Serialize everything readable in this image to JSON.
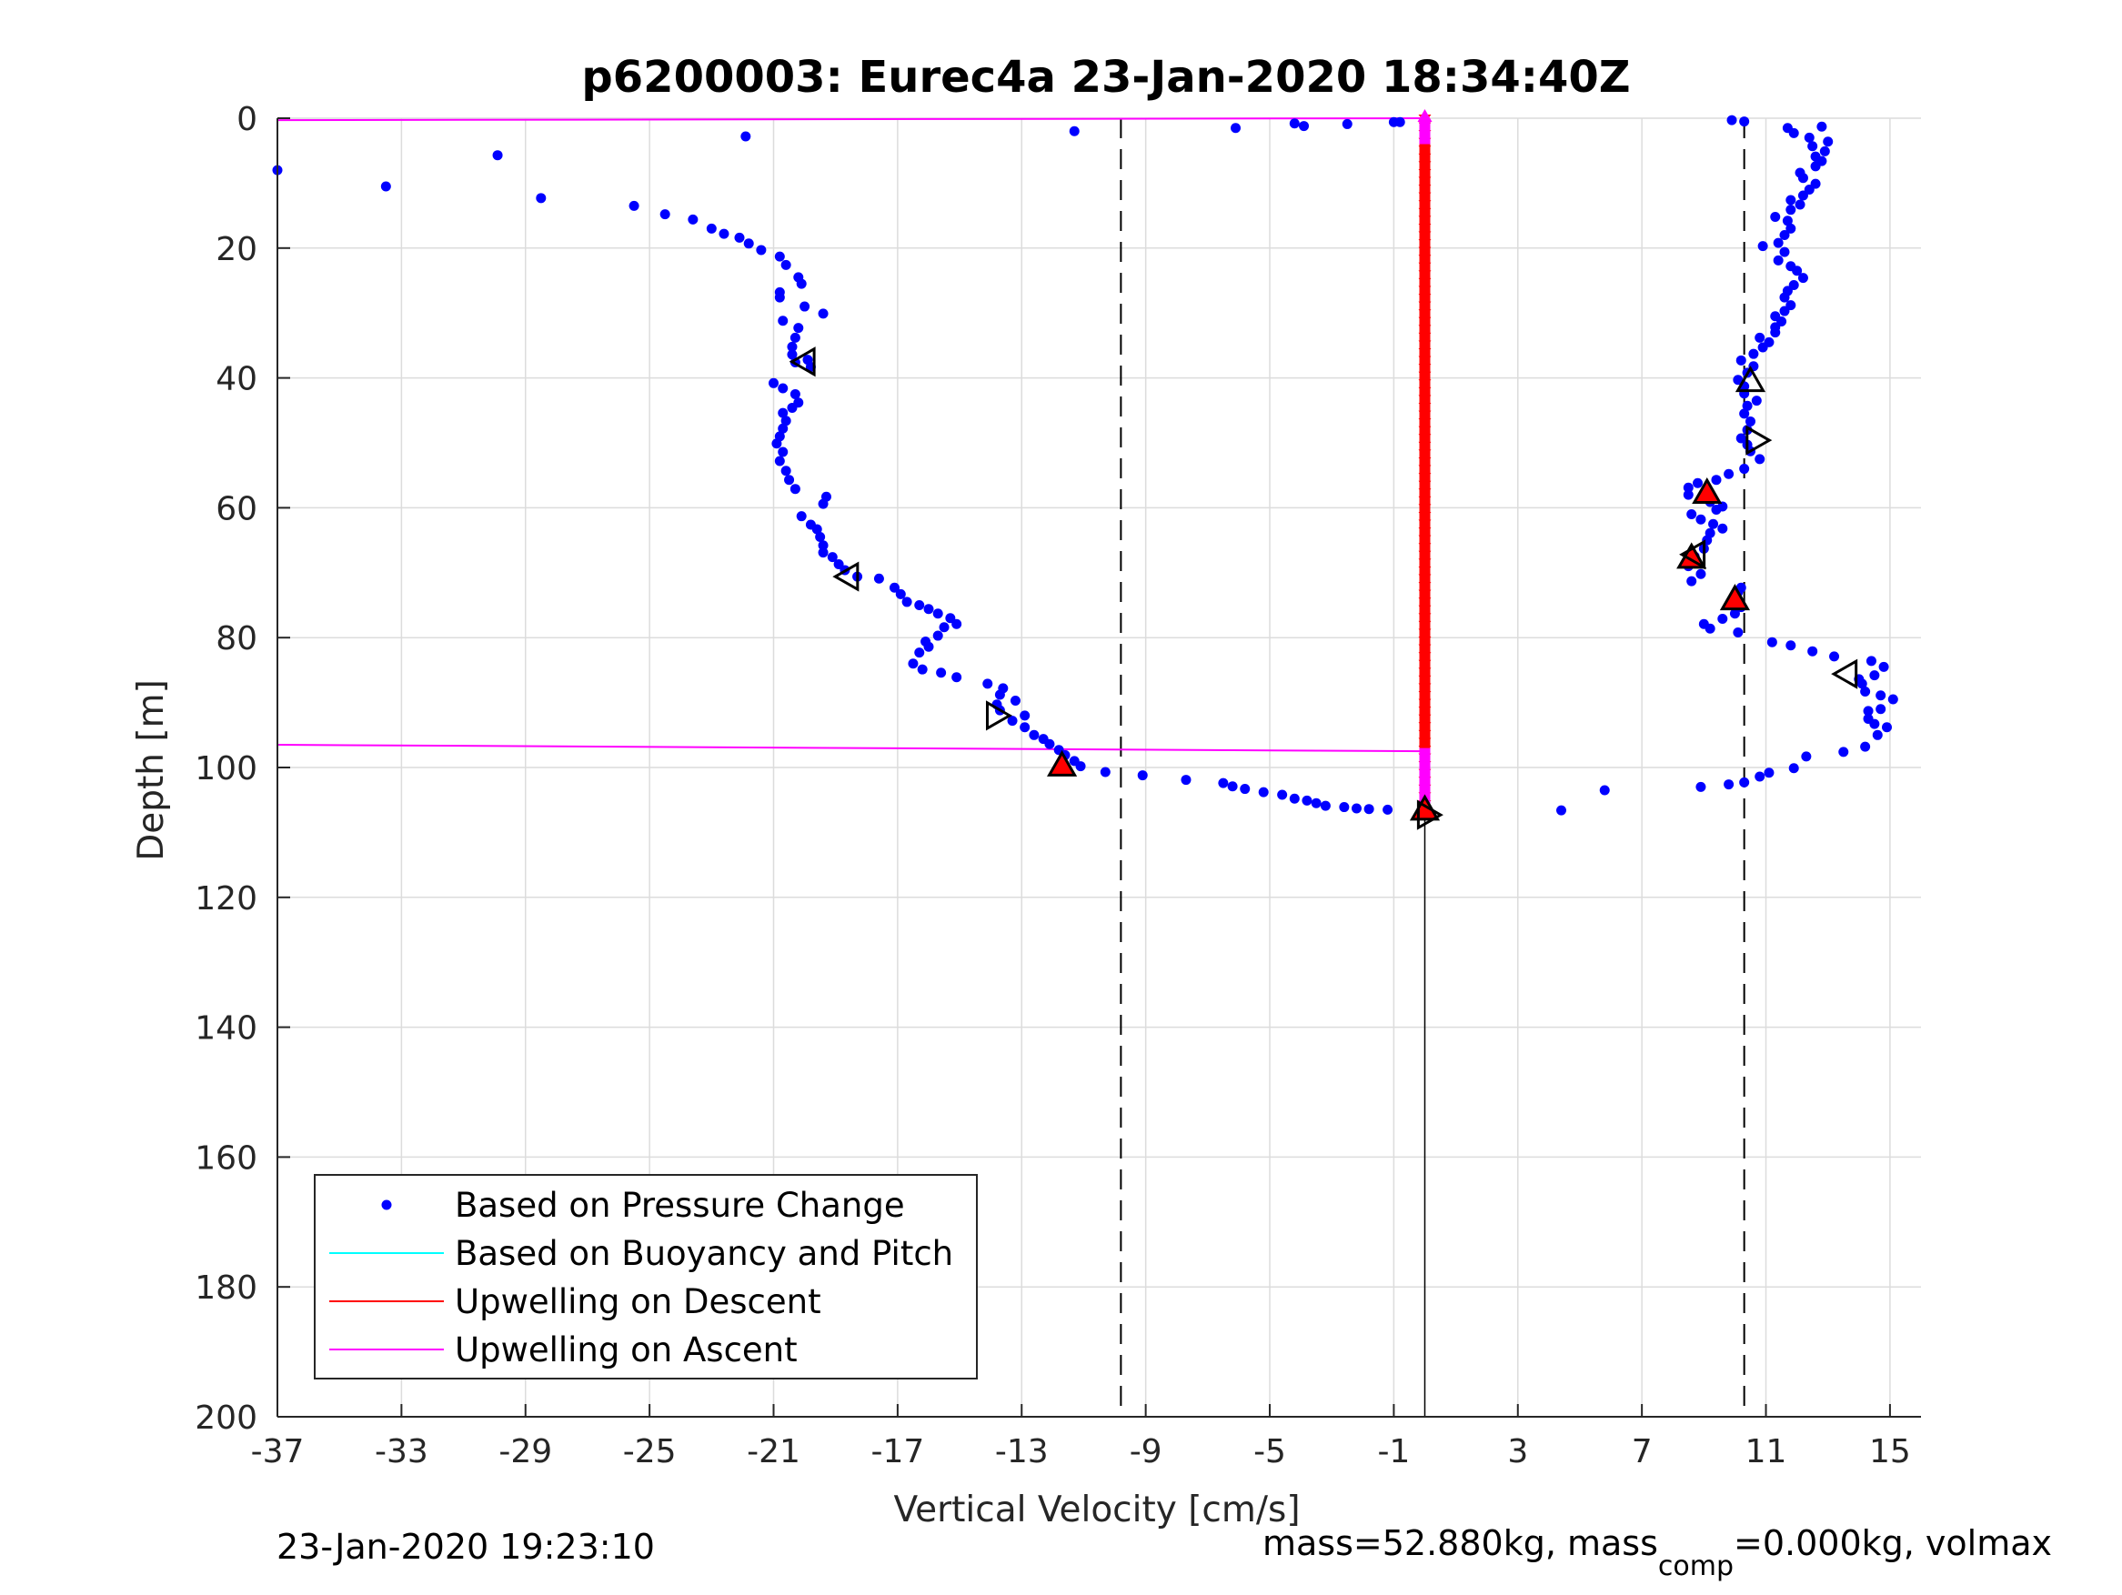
{
  "figure": {
    "title": "p6200003: Eurec4a 23-Jan-2020 18:34:40Z",
    "footer_left": "23-Jan-2020 19:23:10",
    "footer_right": {
      "part1": "mass=52.880kg, mass",
      "sub": "comp",
      "part2": "=0.000kg, volmax"
    }
  },
  "chart_data": {
    "type": "scatter",
    "title": "p6200003: Eurec4a 23-Jan-2020 18:34:40Z",
    "xlabel": "Vertical Velocity [cm/s]",
    "ylabel": "Depth [m]",
    "xlim": [
      -37,
      16
    ],
    "ylim": [
      0,
      200
    ],
    "y_reversed": true,
    "grid": true,
    "legend_position": "bottom-left",
    "xticks": [
      -37,
      -33,
      -29,
      -25,
      -21,
      -17,
      -13,
      -9,
      -5,
      -1,
      3,
      7,
      11,
      15
    ],
    "yticks": [
      0,
      20,
      40,
      60,
      80,
      100,
      120,
      140,
      160,
      180,
      200
    ],
    "colors": {
      "pressure": "#0000ff",
      "buoyancy": "#00ffff",
      "descent": "#ff0000",
      "ascent": "#ff00ff",
      "marker_fill": "#ff0000"
    },
    "legend": [
      {
        "label": "Based on Pressure Change",
        "style": "dot",
        "color": "#0000ff"
      },
      {
        "label": "Based on Buoyancy and Pitch",
        "style": "line",
        "color": "#00ffff"
      },
      {
        "label": "Upwelling on Descent",
        "style": "line",
        "color": "#ff0000"
      },
      {
        "label": "Upwelling on Ascent",
        "style": "line",
        "color": "#ff00ff"
      }
    ],
    "dashed_lines_x": [
      -9.8,
      10.3
    ],
    "zero_line_x": 0,
    "series": [
      {
        "name": "Based on Pressure Change",
        "kind": "dots",
        "points": [
          [
            -37.0,
            8.0
          ],
          [
            -33.5,
            10.5
          ],
          [
            -29.9,
            5.7
          ],
          [
            -28.5,
            12.3
          ],
          [
            -21.9,
            2.8
          ],
          [
            -11.3,
            2.0
          ],
          [
            -25.5,
            13.5
          ],
          [
            -24.5,
            14.8
          ],
          [
            -23.6,
            15.6
          ],
          [
            -23.0,
            17.0
          ],
          [
            -22.6,
            17.8
          ],
          [
            -22.1,
            18.4
          ],
          [
            -21.8,
            19.3
          ],
          [
            -21.4,
            20.3
          ],
          [
            -20.8,
            21.3
          ],
          [
            -20.6,
            22.6
          ],
          [
            -20.2,
            24.5
          ],
          [
            -20.1,
            25.5
          ],
          [
            -20.8,
            26.8
          ],
          [
            -20.8,
            27.6
          ],
          [
            -20.0,
            29.0
          ],
          [
            -19.4,
            30.1
          ],
          [
            -20.7,
            31.2
          ],
          [
            -20.2,
            32.3
          ],
          [
            -20.3,
            33.8
          ],
          [
            -20.4,
            35.2
          ],
          [
            -20.4,
            36.4
          ],
          [
            -19.9,
            37.2
          ],
          [
            -20.3,
            37.6
          ],
          [
            -19.8,
            38.3
          ],
          [
            -21.0,
            40.8
          ],
          [
            -20.7,
            41.6
          ],
          [
            -20.3,
            42.5
          ],
          [
            -20.2,
            43.8
          ],
          [
            -20.4,
            44.6
          ],
          [
            -20.7,
            45.4
          ],
          [
            -20.6,
            46.6
          ],
          [
            -20.7,
            47.8
          ],
          [
            -20.8,
            49.0
          ],
          [
            -20.9,
            50.1
          ],
          [
            -20.7,
            51.4
          ],
          [
            -20.8,
            52.8
          ],
          [
            -20.6,
            54.3
          ],
          [
            -20.5,
            55.7
          ],
          [
            -20.3,
            57.1
          ],
          [
            -19.3,
            58.3
          ],
          [
            -19.4,
            59.4
          ],
          [
            -20.1,
            61.3
          ],
          [
            -19.8,
            62.6
          ],
          [
            -19.6,
            63.3
          ],
          [
            -19.5,
            64.5
          ],
          [
            -19.4,
            65.8
          ],
          [
            -19.4,
            66.9
          ],
          [
            -19.1,
            67.6
          ],
          [
            -18.9,
            68.7
          ],
          [
            -18.7,
            69.6
          ],
          [
            -18.3,
            70.6
          ],
          [
            -17.6,
            70.9
          ],
          [
            -17.1,
            72.3
          ],
          [
            -16.9,
            73.3
          ],
          [
            -16.7,
            74.5
          ],
          [
            -16.3,
            75.0
          ],
          [
            -16.0,
            75.6
          ],
          [
            -15.7,
            76.3
          ],
          [
            -15.3,
            77.0
          ],
          [
            -15.1,
            77.9
          ],
          [
            -15.5,
            78.4
          ],
          [
            -15.7,
            79.7
          ],
          [
            -16.1,
            80.6
          ],
          [
            -16.0,
            81.4
          ],
          [
            -16.3,
            82.3
          ],
          [
            -16.5,
            84.0
          ],
          [
            -16.2,
            84.9
          ],
          [
            -15.6,
            85.4
          ],
          [
            -15.1,
            86.1
          ],
          [
            -14.1,
            87.1
          ],
          [
            -13.6,
            87.8
          ],
          [
            -13.7,
            88.8
          ],
          [
            -13.2,
            89.7
          ],
          [
            -13.8,
            90.3
          ],
          [
            -13.7,
            91.2
          ],
          [
            -12.9,
            92.0
          ],
          [
            -13.3,
            92.8
          ],
          [
            -12.9,
            93.8
          ],
          [
            -12.6,
            95.0
          ],
          [
            -12.3,
            95.6
          ],
          [
            -12.1,
            96.4
          ],
          [
            -11.8,
            97.3
          ],
          [
            -11.6,
            98.1
          ],
          [
            -11.3,
            99.0
          ],
          [
            -11.1,
            99.8
          ],
          [
            -10.3,
            100.7
          ],
          [
            -9.1,
            101.2
          ],
          [
            -7.7,
            101.9
          ],
          [
            -6.5,
            102.4
          ],
          [
            -6.2,
            102.9
          ],
          [
            -5.8,
            103.3
          ],
          [
            -5.2,
            103.8
          ],
          [
            -4.6,
            104.2
          ],
          [
            -4.2,
            104.8
          ],
          [
            -3.8,
            105.1
          ],
          [
            -3.5,
            105.5
          ],
          [
            -3.2,
            105.9
          ],
          [
            -2.6,
            106.1
          ],
          [
            -2.2,
            106.3
          ],
          [
            -1.8,
            106.4
          ],
          [
            -1.2,
            106.5
          ],
          [
            -6.1,
            1.5
          ],
          [
            -4.2,
            0.8
          ],
          [
            -3.9,
            1.2
          ],
          [
            -2.5,
            0.9
          ],
          [
            -1.0,
            0.6
          ],
          [
            -0.8,
            0.6
          ],
          [
            4.4,
            106.6
          ],
          [
            5.8,
            103.5
          ],
          [
            8.9,
            103.0
          ],
          [
            9.8,
            102.6
          ],
          [
            10.3,
            102.3
          ],
          [
            10.8,
            101.4
          ],
          [
            11.1,
            100.8
          ],
          [
            11.9,
            100.1
          ],
          [
            12.3,
            98.3
          ],
          [
            13.5,
            97.6
          ],
          [
            14.2,
            96.8
          ],
          [
            14.6,
            95.0
          ],
          [
            14.5,
            93.3
          ],
          [
            14.9,
            93.8
          ],
          [
            14.3,
            92.5
          ],
          [
            14.7,
            91.0
          ],
          [
            14.3,
            91.3
          ],
          [
            15.1,
            89.5
          ],
          [
            14.7,
            88.9
          ],
          [
            14.2,
            88.3
          ],
          [
            14.1,
            87.1
          ],
          [
            14.0,
            86.4
          ],
          [
            14.5,
            85.8
          ],
          [
            14.8,
            84.5
          ],
          [
            14.4,
            83.6
          ],
          [
            13.2,
            82.9
          ],
          [
            12.5,
            82.1
          ],
          [
            11.8,
            81.2
          ],
          [
            11.2,
            80.7
          ],
          [
            10.1,
            79.2
          ],
          [
            9.2,
            78.6
          ],
          [
            9.0,
            77.9
          ],
          [
            9.6,
            77.1
          ],
          [
            10.0,
            76.3
          ],
          [
            10.2,
            75.3
          ],
          [
            10.0,
            73.8
          ],
          [
            10.1,
            73.0
          ],
          [
            10.2,
            72.3
          ],
          [
            8.6,
            71.3
          ],
          [
            8.9,
            70.2
          ],
          [
            8.5,
            69.0
          ],
          [
            8.7,
            67.5
          ],
          [
            9.0,
            66.3
          ],
          [
            9.1,
            65.0
          ],
          [
            9.2,
            63.9
          ],
          [
            9.6,
            63.2
          ],
          [
            9.3,
            62.5
          ],
          [
            8.9,
            61.8
          ],
          [
            8.6,
            61.0
          ],
          [
            9.4,
            60.3
          ],
          [
            9.6,
            59.8
          ],
          [
            9.2,
            59.1
          ],
          [
            8.5,
            58.0
          ],
          [
            8.5,
            56.9
          ],
          [
            8.8,
            56.2
          ],
          [
            9.4,
            55.7
          ],
          [
            9.8,
            54.8
          ],
          [
            10.3,
            54.0
          ],
          [
            10.8,
            52.5
          ],
          [
            10.5,
            51.3
          ],
          [
            10.4,
            50.3
          ],
          [
            10.2,
            49.3
          ],
          [
            10.4,
            48.0
          ],
          [
            10.5,
            46.7
          ],
          [
            10.3,
            45.5
          ],
          [
            10.4,
            44.3
          ],
          [
            10.7,
            43.5
          ],
          [
            10.3,
            42.4
          ],
          [
            10.3,
            41.3
          ],
          [
            10.1,
            40.3
          ],
          [
            10.4,
            39.2
          ],
          [
            10.6,
            38.2
          ],
          [
            10.2,
            37.3
          ],
          [
            10.6,
            36.3
          ],
          [
            10.9,
            35.3
          ],
          [
            11.1,
            34.5
          ],
          [
            10.8,
            33.8
          ],
          [
            11.3,
            33.0
          ],
          [
            11.3,
            32.2
          ],
          [
            11.5,
            31.3
          ],
          [
            11.3,
            30.5
          ],
          [
            11.6,
            29.7
          ],
          [
            11.8,
            28.8
          ],
          [
            11.6,
            27.6
          ],
          [
            11.7,
            26.6
          ],
          [
            11.9,
            25.7
          ],
          [
            12.2,
            24.6
          ],
          [
            12.0,
            23.5
          ],
          [
            11.8,
            22.8
          ],
          [
            11.4,
            21.9
          ],
          [
            11.6,
            20.6
          ],
          [
            10.9,
            19.7
          ],
          [
            11.4,
            19.2
          ],
          [
            11.6,
            18.0
          ],
          [
            11.8,
            17.0
          ],
          [
            11.7,
            15.8
          ],
          [
            11.3,
            15.2
          ],
          [
            11.8,
            14.1
          ],
          [
            12.1,
            13.3
          ],
          [
            11.8,
            12.6
          ],
          [
            12.2,
            11.9
          ],
          [
            12.4,
            11.0
          ],
          [
            12.6,
            10.1
          ],
          [
            12.2,
            9.2
          ],
          [
            12.1,
            8.4
          ],
          [
            12.6,
            7.4
          ],
          [
            12.8,
            6.6
          ],
          [
            12.6,
            5.9
          ],
          [
            12.9,
            5.1
          ],
          [
            12.5,
            4.3
          ],
          [
            13.0,
            3.6
          ],
          [
            12.4,
            3.0
          ],
          [
            11.9,
            2.3
          ],
          [
            12.8,
            1.3
          ],
          [
            11.7,
            1.5
          ],
          [
            9.9,
            0.3
          ],
          [
            10.3,
            0.5
          ]
        ]
      },
      {
        "name": "Upwelling on Descent",
        "kind": "column",
        "x": 0,
        "y_range": [
          0,
          107
        ]
      },
      {
        "name": "Upwelling on Ascent",
        "kind": "lines",
        "segments": [
          [
            [
              -37.0,
              0.3
            ],
            [
              0,
              0.0
            ]
          ],
          [
            [
              -37.0,
              96.5
            ],
            [
              0,
              97.5
            ]
          ]
        ],
        "column": {
          "x": 0,
          "y_ranges": [
            [
              0,
              4
            ],
            [
              97,
              107
            ]
          ]
        }
      }
    ],
    "markers": [
      {
        "shape": "triangle-left",
        "filled": false,
        "x": -20.0,
        "y": 37.5
      },
      {
        "shape": "triangle-left",
        "filled": false,
        "x": -18.6,
        "y": 70.6
      },
      {
        "shape": "triangle-right",
        "filled": false,
        "x": -13.8,
        "y": 92.0
      },
      {
        "shape": "triangle-up",
        "filled": true,
        "x": -11.7,
        "y": 99.7
      },
      {
        "shape": "triangle-up",
        "filled": true,
        "x": 0.0,
        "y": 106.5
      },
      {
        "shape": "triangle-right",
        "filled": false,
        "x": 0.1,
        "y": 107.3
      },
      {
        "shape": "triangle-left",
        "filled": false,
        "x": 13.6,
        "y": 85.6
      },
      {
        "shape": "triangle-up",
        "filled": true,
        "x": 10.0,
        "y": 74.1
      },
      {
        "shape": "triangle-up",
        "filled": true,
        "x": 8.6,
        "y": 67.7
      },
      {
        "shape": "triangle-left",
        "filled": false,
        "x": 8.7,
        "y": 67.2
      },
      {
        "shape": "triangle-up",
        "filled": true,
        "x": 9.1,
        "y": 57.7
      },
      {
        "shape": "triangle-right",
        "filled": false,
        "x": 10.7,
        "y": 49.6
      },
      {
        "shape": "triangle-up",
        "filled": false,
        "x": 10.5,
        "y": 40.5
      }
    ]
  }
}
